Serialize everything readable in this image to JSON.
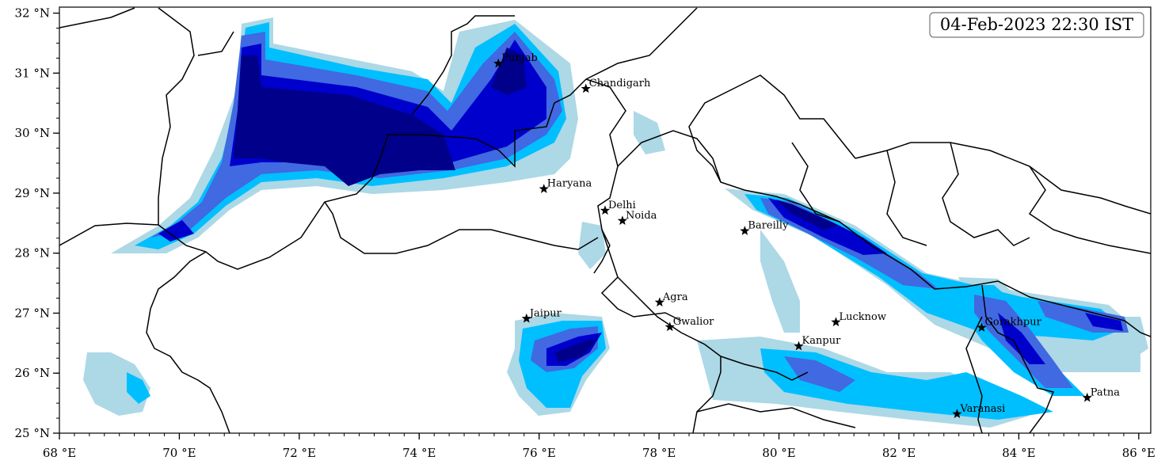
{
  "timestamp": "04-Feb-2023 22:30 IST",
  "axes": {
    "lon_range": [
      68,
      86.2
    ],
    "lat_range": [
      25,
      32.1
    ],
    "lon_ticks": [
      68,
      70,
      72,
      74,
      76,
      78,
      80,
      82,
      84,
      86
    ],
    "lat_ticks": [
      25,
      26,
      27,
      28,
      29,
      30,
      31,
      32
    ],
    "lon_tick_labels": [
      "68 °E",
      "70 °E",
      "72 °E",
      "74 °E",
      "76 °E",
      "78 °E",
      "80 °E",
      "82 °E",
      "84 °E",
      "86 °E"
    ],
    "lat_tick_labels": [
      "25 °N",
      "26 °N",
      "27 °N",
      "28 °N",
      "29 °N",
      "30 °N",
      "31 °N",
      "32 °N"
    ]
  },
  "cities": [
    {
      "name": "Punjab",
      "lon": 75.32,
      "lat": 31.16
    },
    {
      "name": "Chandigarh",
      "lon": 76.78,
      "lat": 30.74
    },
    {
      "name": "Haryana",
      "lon": 76.08,
      "lat": 29.07
    },
    {
      "name": "Delhi",
      "lon": 77.1,
      "lat": 28.71
    },
    {
      "name": "Noida",
      "lon": 77.39,
      "lat": 28.54
    },
    {
      "name": "Bareilly",
      "lon": 79.43,
      "lat": 28.37
    },
    {
      "name": "Agra",
      "lon": 78.01,
      "lat": 27.18
    },
    {
      "name": "Jaipur",
      "lon": 75.79,
      "lat": 26.91
    },
    {
      "name": "Gwalior",
      "lon": 78.18,
      "lat": 26.77
    },
    {
      "name": "Lucknow",
      "lon": 80.95,
      "lat": 26.85
    },
    {
      "name": "Kanpur",
      "lon": 80.33,
      "lat": 26.45
    },
    {
      "name": "Gorakhpur",
      "lon": 83.38,
      "lat": 26.76
    },
    {
      "name": "Varanasi",
      "lon": 82.97,
      "lat": 25.32
    },
    {
      "name": "Patna",
      "lon": 85.14,
      "lat": 25.59
    }
  ],
  "rain_colors": [
    "#add8e6",
    "#00bfff",
    "#4169e1",
    "#0000cd",
    "#00008b"
  ],
  "marker_icon": "star-icon"
}
